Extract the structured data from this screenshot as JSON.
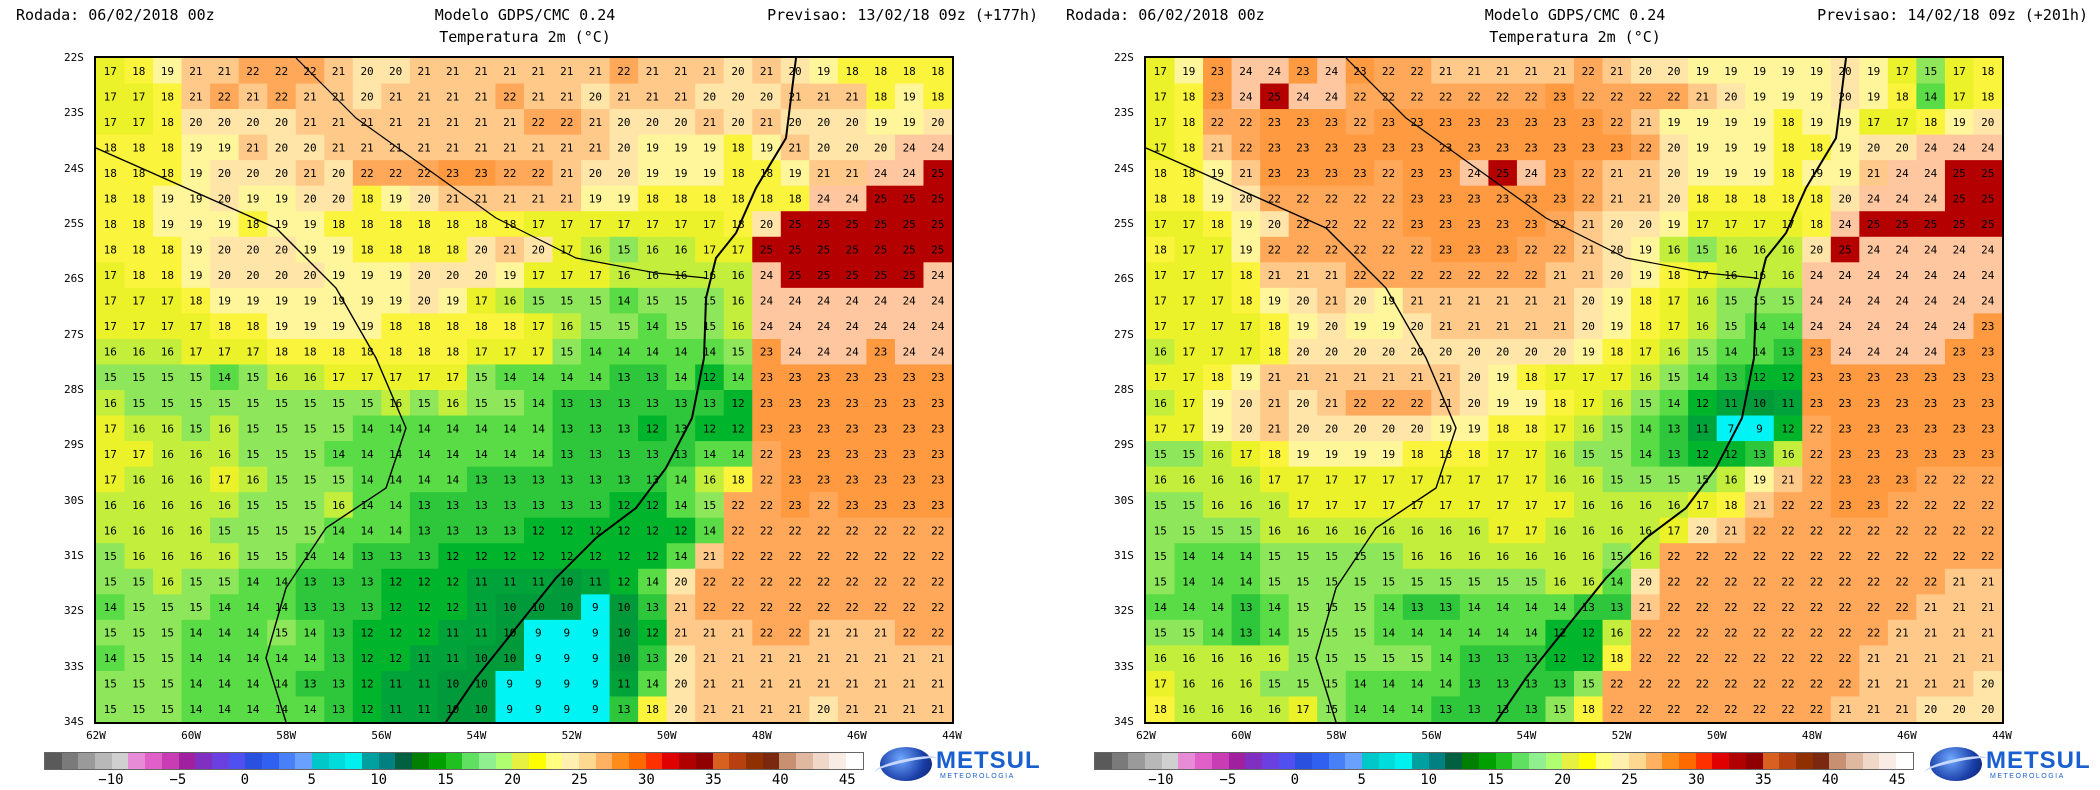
{
  "colors": {
    "scale": [
      "#5a5a5a",
      "#7a7a7a",
      "#9a9a9a",
      "#b8b8b8",
      "#d0d0d0",
      "#e88bd6",
      "#e060c8",
      "#c83cb4",
      "#a020a0",
      "#8030c0",
      "#6a40e0",
      "#5050f0",
      "#2a50e0",
      "#3060f0",
      "#4880f8",
      "#6aa0ff",
      "#00c8c8",
      "#00dcdc",
      "#00f0f0",
      "#00a0a0",
      "#008080",
      "#006040",
      "#008000",
      "#00a000",
      "#20c020",
      "#60e060",
      "#90f090",
      "#b0ff70",
      "#e6f040",
      "#ffff00",
      "#ffff80",
      "#fff0b0",
      "#ffd890",
      "#ffb060",
      "#ff8c1a",
      "#ff6a00",
      "#ff3000",
      "#e00000",
      "#b00000",
      "#900000",
      "#d86020",
      "#b84010",
      "#903000",
      "#7a2810",
      "#c89070",
      "#e0b8a0",
      "#f0d8c8",
      "#f8ece4",
      "#ffffff"
    ]
  },
  "colorbar_labels": [
    "−10",
    "−5",
    "0",
    "5",
    "10",
    "15",
    "20",
    "25",
    "30",
    "35",
    "40",
    "45"
  ],
  "lat_labels": [
    "22S",
    "23S",
    "24S",
    "25S",
    "26S",
    "27S",
    "28S",
    "29S",
    "30S",
    "31S",
    "32S",
    "33S",
    "34S"
  ],
  "lon_labels": [
    "62W",
    "60W",
    "58W",
    "56W",
    "54W",
    "52W",
    "50W",
    "48W",
    "46W",
    "44W"
  ],
  "logo": {
    "name": "METSUL",
    "sub": "METEOROLOGIA"
  },
  "panels": [
    {
      "run": "Rodada: 06/02/2018 00z",
      "model": "Modelo GDPS/CMC 0.24",
      "variable": "Temperatura 2m (°C)",
      "forecast": "Previsao: 13/02/18 09z (+177h)",
      "grid": [
        "17 18 19 21 21 22 22 22 21 20 20 21 21 21 21 21 21 21 22 21 21 21 20 21 20 19 18 18 18 18",
        "17 17 18 21 22 21 22 21 21 20 21 21 21 21 22 21 21 20 21 21 21 20 20 20 21 21 21 18 19 18",
        "17 17 18 20 20 20 20 21 21 21 21 21 21 21 21 22 22 21 20 20 20 21 20 21 20 20 20 19 19 20",
        "18 18 18 19 19 21 20 20 21 21 21 21 21 21 21 21 21 21 20 19 19 19 18 19 21 20 20 20 24 24",
        "18 18 18 19 20 20 20 21 20 22 22 22 23 23 22 22 21 20 20 19 19 19 18 18 19 21 21 24 24 25",
        "18 18 19 19 20 19 19 20 20 18 19 20 21 21 21 21 21 19 19 18 18 18 18 18 18 24 24 25 25 25",
        "18 18 19 19 19 18 19 19 18 18 18 18 18 18 18 17 17 17 17 17 17 17 18 20 25 25 25 25 25 25",
        "18 18 18 19 20 20 20 19 19 18 18 18 18 20 21 20 17 16 15 16 16 17 17 25 25 25 25 25 25 25",
        "17 18 18 19 20 20 20 20 19 19 19 20 20 20 19 17 17 17 16 16 16 16 16 24 25 25 25 25 25 24",
        "17 17 17 18 19 19 19 19 19 19 19 20 19 17 16 15 15 15 14 15 15 15 16 24 24 24 24 24 24 24",
        "17 17 17 17 18 18 19 19 19 19 18 18 18 18 18 17 16 15 15 14 15 15 16 24 24 24 24 24 24 24",
        "16 16 16 17 17 17 18 18 18 18 18 18 18 17 17 17 15 14 14 14 14 14 15 23 24 24 24 23 24 24",
        "15 15 15 15 14 15 16 16 17 17 17 17 17 15 14 14 14 14 13 13 14 12 14 23 23 23 23 23 23 23",
        "16 15 15 15 15 15 15 15 15 15 16 15 16 15 15 14 13 13 13 13 13 13 12 23 23 23 23 23 23 23",
        "17 16 16 15 16 15 15 15 15 14 14 14 14 14 14 14 13 13 13 12 13 12 12 23 23 23 23 23 23 23",
        "17 17 16 16 16 15 15 15 14 14 14 14 14 14 14 14 13 13 13 13 13 14 14 22 23 23 23 23 23 23",
        "17 16 16 16 17 16 15 15 15 14 14 14 14 13 13 13 13 13 13 13 14 16 18 22 23 23 23 23 23 23",
        "16 16 16 16 16 15 15 15 16 14 14 13 13 13 13 13 13 13 12 12 14 15 22 22 23 22 23 23 23 23",
        "16 16 16 16 15 15 15 15 14 14 14 13 13 13 13 12 12 12 12 12 12 14 22 22 22 22 22 22 22 22",
        "15 16 16 16 16 15 15 14 14 13 13 13 12 12 12 12 12 12 12 12 14 21 22 22 22 22 22 22 22 22",
        "15 15 16 15 15 14 14 13 13 13 12 12 12 11 11 11 10 11 12 14 20 22 22 22 22 22 22 22 22 22",
        "14 15 15 15 14 14 14 13 13 13 12 12 12 11 10 10 10  9 10 13 21 22 22 22 22 22 22 22 22 22",
        "15 15 15 14 14 14 15 14 13 12 12 12 11 11 10  9  9  9 10 12 21 21 21 22 22 21 21 21 22 22",
        "14 15 15 14 14 14 14 14 13 12 12 11 11 10 10  9  9  9 10 13 20 21 21 21 21 21 21 21 21 21",
        "15 15 15 14 14 14 14 13 13 12 11 11 10 10  9  9  9  9 11 14 20 21 21 21 21 21 21 21 21 21",
        "15 15 15 14 14 14 14 14 13 12 11 11 10 10  9  9  9  9 13 18 20 21 21 21 21 20 21 21 21 21"
      ]
    },
    {
      "run": "Rodada: 06/02/2018 00z",
      "model": "Modelo GDPS/CMC 0.24",
      "variable": "Temperatura 2m (°C)",
      "forecast": "Previsao: 14/02/18 09z (+201h)",
      "grid": [
        "17 19 23 24 24 23 24 23 22 22 21 21 21 21 21 22 21 20 20 19 19 19 19 19 20 19 17 15 17 18",
        "17 18 23 24 25 24 24 22 22 22 22 22 22 22 23 22 22 22 22 21 20 19 19 19 20 19 18 14 17 18",
        "17 18 22 22 23 23 23 22 23 23 23 23 23 23 23 23 22 21 19 19 19 19 18 19 19 17 17 18 19 20",
        "17 18 21 22 23 23 23 23 23 23 23 23 23 23 23 23 23 22 20 19 19 19 18 18 19 20 20 24 24 24",
        "18 18 19 21 23 23 23 23 22 23 23 24 25 24 23 22 21 21 20 19 19 19 18 19 19 21 24 24 25 25",
        "18 18 19 20 22 22 22 22 22 23 23 23 23 23 23 22 21 21 20 18 18 18 18 18 20 24 24 24 25 25",
        "17 17 18 19 20 22 22 22 22 23 23 23 23 23 22 21 20 20 19 17 17 17 17 18 24 25 25 25 25 25",
        "18 17 17 19 22 22 22 22 22 22 23 23 23 22 22 21 20 19 16 15 16 16 16 20 25 24 24 24 24 24",
        "17 17 17 18 21 21 21 22 22 22 22 22 22 22 21 21 20 19 18 17 16 16 16 24 24 24 24 24 24 24",
        "17 17 17 18 19 20 21 20 19 21 21 21 21 21 21 20 19 18 17 16 15 15 15 24 24 24 24 24 24 24",
        "17 17 17 17 18 19 20 19 19 20 21 21 21 21 21 20 19 18 17 16 15 14 14 24 24 24 24 24 24 23",
        "16 17 17 17 18 20 20 20 20 20 20 20 20 20 20 19 18 17 16 15 14 14 13 23 24 24 24 24 23 23",
        "17 17 18 19 21 21 21 21 21 21 21 20 19 18 17 17 17 16 15 14 13 12 12 23 23 23 23 23 23 23",
        "16 17 19 20 21 20 21 22 22 22 21 20 19 19 18 17 16 15 14 12 11 10 11 23 23 23 23 23 23 23",
        "17 17 19 20 21 20 20 20 20 20 19 19 18 18 17 16 15 14 13 11  7  9 12 22 23 23 23 23 23 23",
        "15 15 16 17 18 19 19 19 19 18 18 18 17 17 16 15 15 14 13 12 12 13 16 22 23 23 23 23 23 23",
        "16 16 16 16 17 17 17 17 17 17 17 17 17 17 16 16 15 15 15 15 16 19 21 22 23 23 23 22 22 22",
        "15 15 16 16 16 17 17 17 17 17 17 17 17 17 17 16 16 16 16 17 18 21 22 22 23 23 22 22 22 22",
        "15 15 15 15 16 16 16 16 16 16 16 16 17 17 16 16 16 16 17 20 21 22 22 22 22 22 22 22 22 22",
        "15 14 14 14 15 15 15 15 15 16 16 16 16 16 16 16 15 16 22 22 22 22 22 22 22 22 22 22 22 22",
        "15 14 14 14 15 15 15 15 15 15 15 15 15 15 16 16 14 20 22 22 22 22 22 22 22 22 22 22 21 21",
        "14 14 14 13 14 15 15 15 14 13 13 14 14 14 14 13 13 21 22 22 22 22 22 22 22 22 22 21 21 21",
        "15 15 14 13 14 15 15 15 14 14 14 14 14 14 12 12 16 22 22 22 22 22 22 22 22 22 21 21 21 21",
        "16 16 16 16 16 15 15 15 15 15 14 13 13 13 12 12 18 22 22 22 22 22 22 22 22 21 21 21 21 21",
        "17 16 16 16 15 15 15 14 14 14 14 13 13 13 13 15 22 22 22 22 22 22 22 22 22 21 21 21 21 20",
        "18 16 16 16 16 17 15 14 14 14 13 13 13 13 15 18 22 22 22 22 22 22 22 22 21 21 21 20 20 20"
      ]
    }
  ]
}
